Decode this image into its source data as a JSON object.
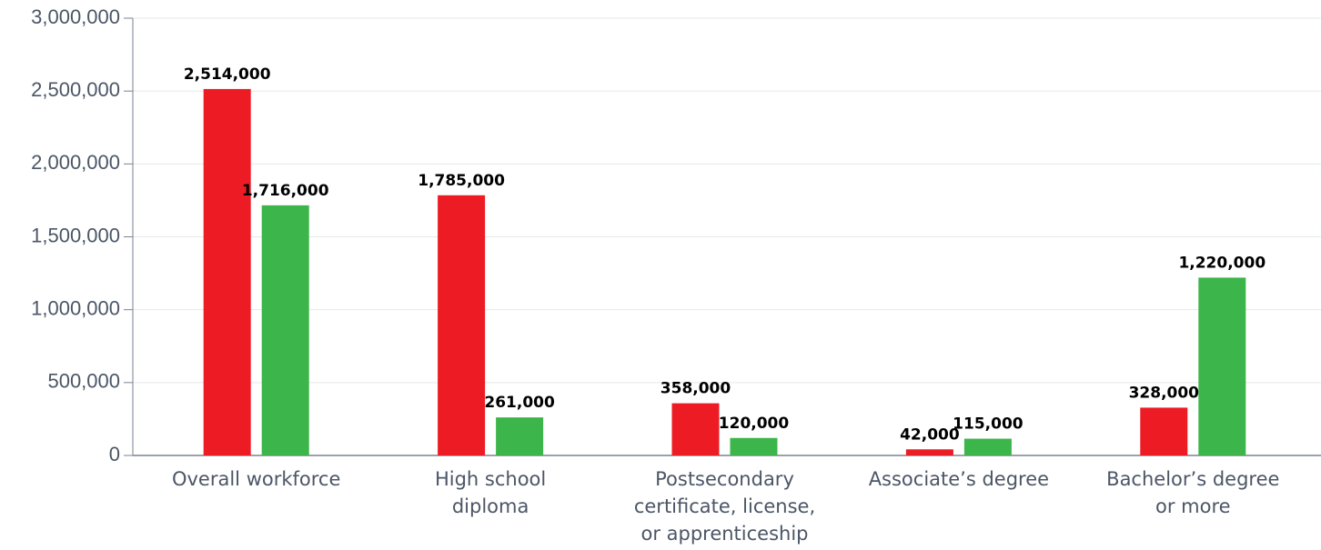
{
  "chart_data": {
    "type": "bar",
    "categories": [
      "Overall workforce",
      "High school diploma",
      "Postsecondary certificate, license, or apprenticeship",
      "Associate’s degree",
      "Bachelor’s degree or more"
    ],
    "series": [
      {
        "color": "#ed1c24",
        "values": [
          2514000,
          1785000,
          358000,
          42000,
          328000
        ],
        "value_labels": [
          "2,514,000",
          "1,785,000",
          "358,000",
          "42,000",
          "328,000"
        ]
      },
      {
        "color": "#3cb54a",
        "values": [
          1716000,
          261000,
          120000,
          115000,
          1220000
        ],
        "value_labels": [
          "1,716,000",
          "261,000",
          "120,000",
          "115,000",
          "1,220,000"
        ]
      }
    ],
    "ylim": [
      0,
      3000000
    ],
    "yticks": [
      0,
      {
        "value": 500000,
        "label": "500,000"
      },
      {
        "value": 1000000,
        "label": "1,000,000"
      },
      {
        "value": 1500000,
        "label": "1,500,000"
      },
      {
        "value": 2000000,
        "label": "2,000,000"
      },
      {
        "value": 2500000,
        "label": "2,500,000"
      },
      {
        "value": 3000000,
        "label": "3,000,000"
      }
    ],
    "grid": true
  }
}
